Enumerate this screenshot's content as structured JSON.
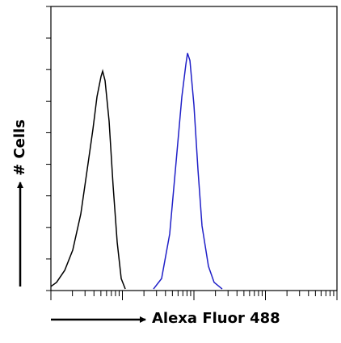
{
  "chart_data": {
    "type": "line",
    "xlabel": "Alexa Fluor 488",
    "ylabel": "# Cells",
    "xscale": "log",
    "xlim": [
      1,
      10000
    ],
    "ylim": [
      0,
      90
    ],
    "xticks": [
      1,
      2,
      3,
      4,
      5,
      6,
      7,
      8,
      9,
      10,
      20,
      30,
      40,
      50,
      60,
      70,
      80,
      90,
      100,
      200,
      300,
      400,
      500,
      600,
      700,
      800,
      900,
      1000,
      2000,
      3000,
      4000,
      5000,
      6000,
      7000,
      8000,
      9000,
      10000
    ],
    "yticks": [
      0,
      10,
      20,
      30,
      40,
      50,
      60,
      70,
      80,
      90
    ],
    "series": [
      {
        "color": "#000000",
        "x": [
          1,
          1.2,
          1.56,
          2.02,
          2.62,
          3.22,
          3.87,
          4.41,
          5.02,
          5.29,
          5.72,
          6.51,
          7.41,
          8.45,
          9.62,
          10.96
        ],
        "values": [
          1.3,
          2.6,
          6.4,
          12.8,
          24.3,
          38.4,
          51.1,
          61.4,
          67.8,
          69.5,
          66.5,
          53.7,
          33.2,
          15.3,
          3.8,
          0.5
        ]
      },
      {
        "color": "#2020c8",
        "x": [
          27.2,
          35.3,
          45.8,
          56.4,
          67.8,
          77.1,
          81.3,
          87.9,
          100,
          113.8,
          129.7,
          159.6,
          191.4,
          248.3
        ],
        "values": [
          0.5,
          3.8,
          17.9,
          40.9,
          61.4,
          71.6,
          75.2,
          72.9,
          58.8,
          38.4,
          20.5,
          7.7,
          2.6,
          0.5
        ]
      }
    ]
  }
}
